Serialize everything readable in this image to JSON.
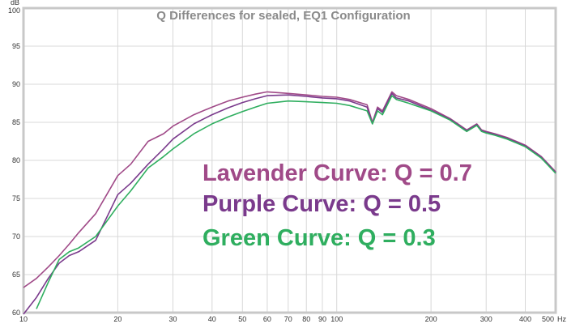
{
  "chart_data": {
    "type": "line",
    "title": "Q Differences for sealed, EQ1 Configuration",
    "xlabel": "Hz",
    "ylabel": "dB",
    "xscale": "log",
    "xlim": [
      10,
      500
    ],
    "ylim": [
      60,
      100
    ],
    "grid": true,
    "x_ticks": [
      10,
      20,
      30,
      40,
      50,
      60,
      70,
      80,
      90,
      100,
      200,
      300,
      400,
      500
    ],
    "y_ticks": [
      60,
      65,
      70,
      75,
      80,
      85,
      90,
      95,
      100
    ],
    "x": [
      10,
      11,
      12,
      13,
      14,
      15,
      17,
      20,
      22,
      25,
      28,
      30,
      35,
      40,
      45,
      50,
      55,
      60,
      70,
      80,
      90,
      100,
      110,
      125,
      130,
      135,
      140,
      150,
      155,
      170,
      200,
      230,
      260,
      280,
      290,
      300,
      320,
      350,
      400,
      450,
      500
    ],
    "series": [
      {
        "name": "Lavender",
        "color": "#a04a88",
        "values": [
          63.3,
          64.5,
          66,
          67.5,
          69,
          70.5,
          73,
          78,
          79.5,
          82.5,
          83.5,
          84.5,
          86,
          87,
          87.8,
          88.3,
          88.7,
          89,
          88.8,
          88.6,
          88.4,
          88.3,
          88,
          87.3,
          85,
          87,
          86.5,
          89,
          88.5,
          88,
          86.8,
          85.5,
          84,
          84.8,
          84,
          83.8,
          83.5,
          83,
          82,
          80.5,
          78.5
        ]
      },
      {
        "name": "Purple",
        "color": "#7a3a8c",
        "values": [
          59.8,
          62,
          64.5,
          66.5,
          67.5,
          68,
          69.5,
          75.5,
          77,
          79.5,
          81.5,
          82.8,
          84.8,
          86,
          86.9,
          87.6,
          88.1,
          88.5,
          88.6,
          88.4,
          88.2,
          88.1,
          87.8,
          87,
          84.8,
          86.8,
          86.3,
          88.8,
          88.2,
          87.8,
          86.6,
          85.4,
          83.9,
          84.7,
          83.9,
          83.7,
          83.4,
          82.9,
          81.9,
          80.4,
          78.4
        ]
      },
      {
        "name": "Green",
        "color": "#2fae5f",
        "values": [
          null,
          60.5,
          64,
          67,
          68,
          68.5,
          70,
          74,
          76,
          79,
          80.5,
          81.5,
          83.5,
          84.8,
          85.7,
          86.4,
          87,
          87.5,
          87.8,
          87.7,
          87.6,
          87.5,
          87.2,
          86.5,
          84.8,
          86.5,
          86,
          88.5,
          88,
          87.5,
          86.5,
          85.3,
          83.8,
          84.6,
          83.8,
          83.6,
          83.3,
          82.8,
          81.8,
          80.3,
          78.3
        ]
      }
    ],
    "annotations": [
      {
        "text": "Lavender Curve: Q = 0.7",
        "color": "#a04a88"
      },
      {
        "text": "Purple Curve: Q = 0.5",
        "color": "#7a3a8c"
      },
      {
        "text": "Green Curve: Q = 0.3",
        "color": "#2fae5f"
      }
    ],
    "legend": "inside-center-right"
  }
}
